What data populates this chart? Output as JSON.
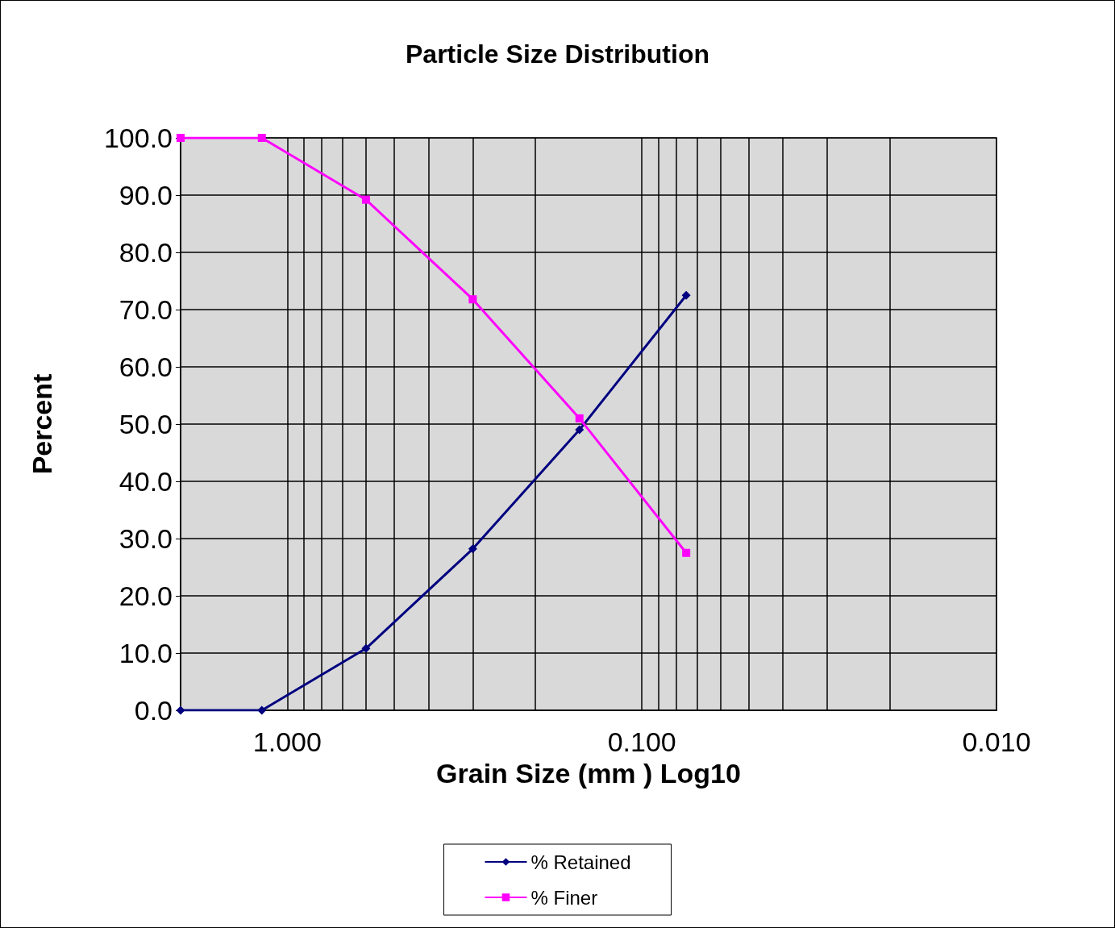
{
  "chart_data": {
    "type": "line",
    "title": "Particle Size Distribution",
    "xlabel": "Grain Size (mm ) Log10",
    "ylabel": "Percent",
    "x": [
      2.0,
      1.18,
      0.6,
      0.3,
      0.15,
      0.075
    ],
    "series": [
      {
        "name": "% Retained",
        "color": "#000080",
        "marker": "diamond",
        "values": [
          0,
          0,
          10.8,
          28.2,
          49.0,
          72.5
        ]
      },
      {
        "name": "% Finer",
        "color": "#ff00ff",
        "marker": "square",
        "values": [
          100,
          100,
          89.2,
          71.8,
          51.0,
          27.5
        ]
      }
    ],
    "log": "x",
    "xlim": [
      2,
      0.01
    ],
    "xticks": [
      {
        "value": 1,
        "label": "1.000"
      },
      {
        "value": 0.9,
        "label": null
      },
      {
        "value": 0.8,
        "label": null
      },
      {
        "value": 0.7,
        "label": null
      },
      {
        "value": 0.6,
        "label": null
      },
      {
        "value": 0.5,
        "label": null
      },
      {
        "value": 0.4,
        "label": null
      },
      {
        "value": 0.3,
        "label": null
      },
      {
        "value": 0.2,
        "label": null
      },
      {
        "value": 0.1,
        "label": "0.100"
      },
      {
        "value": 0.09,
        "label": null
      },
      {
        "value": 0.08,
        "label": null
      },
      {
        "value": 0.07,
        "label": null
      },
      {
        "value": 0.06,
        "label": null
      },
      {
        "value": 0.05,
        "label": null
      },
      {
        "value": 0.04,
        "label": null
      },
      {
        "value": 0.03,
        "label": null
      },
      {
        "value": 0.02,
        "label": null
      },
      {
        "value": 0.01,
        "label": "0.010"
      }
    ],
    "ylim": [
      0,
      100
    ],
    "yticks": [
      {
        "value": 0,
        "label": "0.0"
      },
      {
        "value": 10,
        "label": "10.0"
      },
      {
        "value": 20,
        "label": "20.0"
      },
      {
        "value": 30,
        "label": "30.0"
      },
      {
        "value": 40,
        "label": "40.0"
      },
      {
        "value": 50,
        "label": "50.0"
      },
      {
        "value": 60,
        "label": "60.0"
      },
      {
        "value": 70,
        "label": "70.0"
      },
      {
        "value": 80,
        "label": "80.0"
      },
      {
        "value": 90,
        "label": "90.0"
      },
      {
        "value": 100,
        "label": "100.0"
      }
    ],
    "grid": true,
    "legend": "bottom",
    "line_style": "solid"
  }
}
